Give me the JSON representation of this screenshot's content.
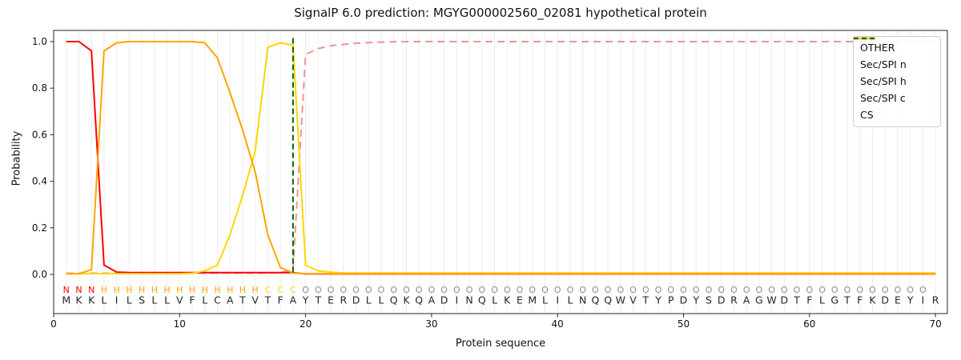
{
  "chart_data": {
    "type": "line",
    "title": "SignalP 6.0 prediction: MGYG000002560_02081 hypothetical protein",
    "xlabel": "Protein sequence",
    "ylabel": "Probability",
    "xticks": [
      0,
      10,
      20,
      30,
      40,
      50,
      60,
      70
    ],
    "yticks": [
      0.0,
      0.2,
      0.4,
      0.6,
      0.8,
      1.0
    ],
    "xlim": [
      0,
      71
    ],
    "ylim": [
      -0.17,
      1.05
    ],
    "grid": "light vertical gridline at every residue position 1-70",
    "legend_position": "upper right",
    "x_positions": "residue index 1-70",
    "sequence": "MKKLILSLLVFLCATVTFAYTERDLLQKQADINQLKEMLILNQQWVTYPDYSDRAGWDTFLGTFKDEYIR",
    "region_labels": "NNNHHHHHHHHHHHHHCCCOOOOOOOOOOOOOOOOOOOOOOOOOOOOOOOOOOOOOOOOOOOOOOOOOO",
    "region_colors": {
      "N": "#ff0000",
      "H": "#ffa500",
      "C": "#ffd700",
      "O": "#8c8c8c"
    },
    "colors": {
      "grid": "#ececec",
      "axis": "#262626",
      "tick_text": "#111111",
      "residue_text": "#262626"
    },
    "series": [
      {
        "name": "OTHER",
        "color": "#f29191",
        "dash": true,
        "values": [
          0.005,
          0.005,
          0.005,
          0.005,
          0.005,
          0.005,
          0.005,
          0.005,
          0.005,
          0.005,
          0.005,
          0.005,
          0.005,
          0.005,
          0.005,
          0.005,
          0.005,
          0.008,
          0.02,
          0.945,
          0.97,
          0.982,
          0.988,
          0.993,
          0.996,
          0.998,
          0.999,
          1.0,
          1.0,
          1.0,
          1.0,
          1.0,
          1.0,
          1.0,
          1.0,
          1.0,
          1.0,
          1.0,
          1.0,
          1.0,
          1.0,
          1.0,
          1.0,
          1.0,
          1.0,
          1.0,
          1.0,
          1.0,
          1.0,
          1.0,
          1.0,
          1.0,
          1.0,
          1.0,
          1.0,
          1.0,
          1.0,
          1.0,
          1.0,
          1.0,
          1.0,
          1.0,
          1.0,
          1.0,
          1.0,
          1.0,
          1.0,
          1.0,
          1.0,
          1.0
        ]
      },
      {
        "name": "Sec/SPI n",
        "color": "#ff0000",
        "dash": false,
        "values": [
          1.0,
          1.0,
          0.96,
          0.04,
          0.01,
          0.008,
          0.008,
          0.008,
          0.008,
          0.008,
          0.008,
          0.008,
          0.008,
          0.008,
          0.008,
          0.008,
          0.008,
          0.008,
          0.008,
          0.002,
          0.002,
          0.002,
          0.002,
          0.002,
          0.002,
          0.002,
          0.002,
          0.002,
          0.002,
          0.002,
          0.002,
          0.002,
          0.002,
          0.002,
          0.002,
          0.002,
          0.002,
          0.002,
          0.002,
          0.002,
          0.002,
          0.002,
          0.002,
          0.002,
          0.002,
          0.002,
          0.002,
          0.002,
          0.002,
          0.002,
          0.002,
          0.002,
          0.002,
          0.002,
          0.002,
          0.002,
          0.002,
          0.002,
          0.002,
          0.002,
          0.002,
          0.002,
          0.002,
          0.002,
          0.002,
          0.002,
          0.002,
          0.002,
          0.002,
          0.002
        ]
      },
      {
        "name": "Sec/SPI h",
        "color": "#ffa500",
        "dash": false,
        "values": [
          0.002,
          0.003,
          0.02,
          0.96,
          0.995,
          1.0,
          1.0,
          1.0,
          1.0,
          1.0,
          1.0,
          0.995,
          0.93,
          0.78,
          0.62,
          0.44,
          0.17,
          0.03,
          0.006,
          0.003,
          0.003,
          0.003,
          0.003,
          0.003,
          0.003,
          0.003,
          0.003,
          0.003,
          0.003,
          0.003,
          0.003,
          0.003,
          0.003,
          0.003,
          0.003,
          0.003,
          0.003,
          0.003,
          0.003,
          0.003,
          0.003,
          0.003,
          0.003,
          0.003,
          0.003,
          0.003,
          0.003,
          0.003,
          0.003,
          0.003,
          0.003,
          0.003,
          0.003,
          0.003,
          0.003,
          0.003,
          0.003,
          0.003,
          0.003,
          0.003,
          0.003,
          0.003,
          0.003,
          0.003,
          0.003,
          0.003,
          0.003,
          0.003,
          0.003,
          0.003
        ]
      },
      {
        "name": "Sec/SPI c",
        "color": "#ffd700",
        "dash": false,
        "values": [
          0.003,
          0.003,
          0.003,
          0.003,
          0.003,
          0.003,
          0.003,
          0.003,
          0.003,
          0.003,
          0.005,
          0.015,
          0.04,
          0.17,
          0.34,
          0.53,
          0.975,
          0.995,
          0.985,
          0.04,
          0.015,
          0.01,
          0.006,
          0.006,
          0.006,
          0.006,
          0.006,
          0.006,
          0.006,
          0.006,
          0.006,
          0.006,
          0.006,
          0.006,
          0.006,
          0.006,
          0.006,
          0.006,
          0.006,
          0.006,
          0.006,
          0.006,
          0.006,
          0.006,
          0.006,
          0.006,
          0.006,
          0.006,
          0.006,
          0.006,
          0.006,
          0.006,
          0.006,
          0.006,
          0.006,
          0.006,
          0.006,
          0.006,
          0.006,
          0.006,
          0.006,
          0.006,
          0.006,
          0.006,
          0.006,
          0.006,
          0.006,
          0.006,
          0.006,
          0.006
        ]
      }
    ],
    "cs": {
      "name": "CS",
      "x": 19,
      "color": "#006400",
      "dash": true
    }
  }
}
